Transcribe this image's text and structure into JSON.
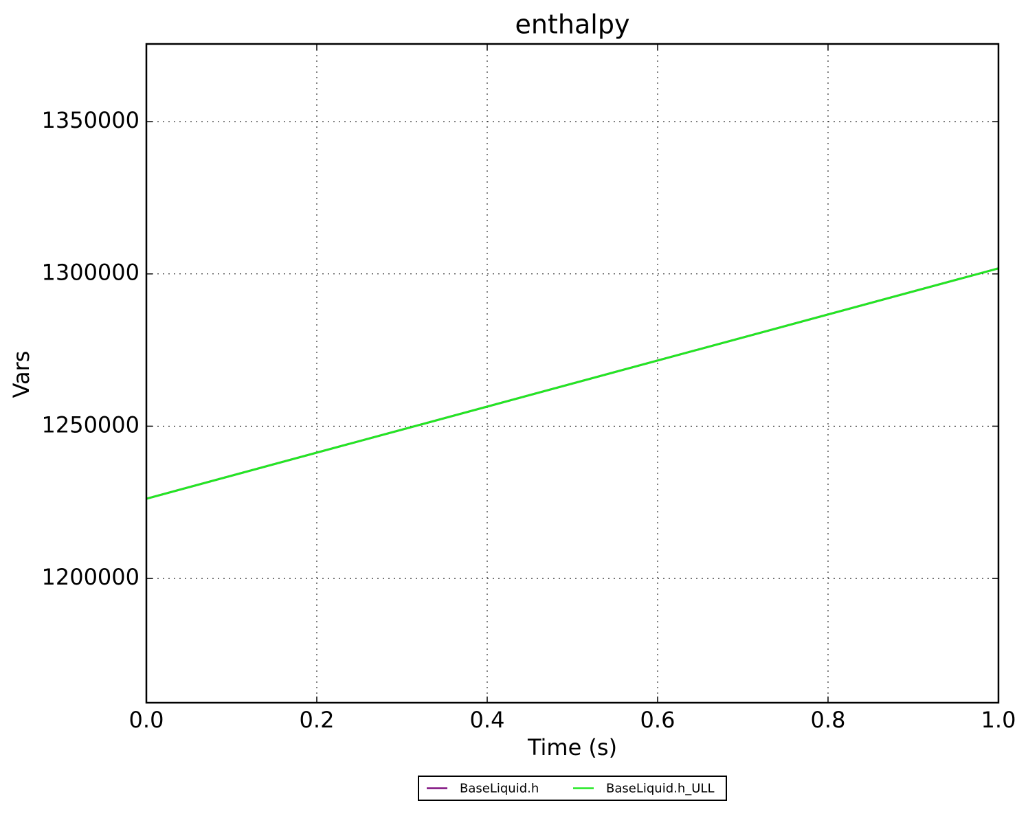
{
  "chart_data": {
    "type": "line",
    "title": "enthalpy",
    "x_label": "Time (s)",
    "y_label": "Vars",
    "x": [
      0,
      1
    ],
    "series": [
      {
        "name": "BaseLiquid.h",
        "color": "#7f0f7f",
        "values": [
          1226185,
          1301806
        ]
      },
      {
        "name": "BaseLiquid.h_ULL",
        "color": "#22e822",
        "values": [
          1226185,
          1301806
        ]
      }
    ],
    "xlim": [
      0,
      1
    ],
    "xticks": [
      {
        "value": 0,
        "label": "0.0"
      },
      0.2,
      0.4,
      0.6,
      0.8,
      {
        "value": 1,
        "label": "1.0"
      }
    ],
    "ylim": [
      1159200,
      1375500
    ],
    "yticks": [
      1200000,
      1250000,
      1300000,
      1350000
    ],
    "grid": true,
    "legend": "bottom"
  }
}
